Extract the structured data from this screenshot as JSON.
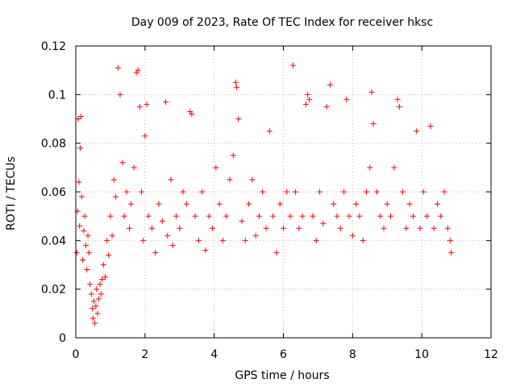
{
  "chart_data": {
    "type": "scatter",
    "title": "Day 009 of 2023, Rate Of TEC Index for receiver hksc",
    "xlabel": "GPS time / hours",
    "ylabel": "ROTI / TECUs",
    "xlim": [
      0,
      12
    ],
    "ylim": [
      0,
      0.12
    ],
    "x_ticks": [
      0,
      2,
      4,
      6,
      8,
      10,
      12
    ],
    "x_tick_labels": [
      "0",
      "2",
      "4",
      "6",
      "8",
      "10",
      "12"
    ],
    "y_ticks": [
      0,
      0.02,
      0.04,
      0.06,
      0.08,
      0.1,
      0.12
    ],
    "y_tick_labels": [
      "0",
      "0.02",
      "0.04",
      "0.06",
      "0.08",
      "0.1",
      "0.12"
    ],
    "grid": true,
    "marker": "+",
    "color": "#ff0000",
    "x_range_observed": [
      0,
      10.85
    ],
    "series": [
      {
        "points": [
          [
            0.03,
            0.035
          ],
          [
            0.05,
            0.052
          ],
          [
            0.07,
            0.09
          ],
          [
            0.09,
            0.064
          ],
          [
            0.11,
            0.046
          ],
          [
            0.13,
            0.078
          ],
          [
            0.15,
            0.091
          ],
          [
            0.17,
            0.058
          ],
          [
            0.2,
            0.032
          ],
          [
            0.23,
            0.044
          ],
          [
            0.26,
            0.05
          ],
          [
            0.29,
            0.038
          ],
          [
            0.32,
            0.028
          ],
          [
            0.35,
            0.042
          ],
          [
            0.38,
            0.035
          ],
          [
            0.41,
            0.022
          ],
          [
            0.45,
            0.018
          ],
          [
            0.48,
            0.012
          ],
          [
            0.5,
            0.008
          ],
          [
            0.52,
            0.015
          ],
          [
            0.55,
            0.006
          ],
          [
            0.58,
            0.013
          ],
          [
            0.6,
            0.02
          ],
          [
            0.63,
            0.01
          ],
          [
            0.66,
            0.016
          ],
          [
            0.7,
            0.022
          ],
          [
            0.73,
            0.018
          ],
          [
            0.76,
            0.024
          ],
          [
            0.8,
            0.03
          ],
          [
            0.85,
            0.025
          ],
          [
            0.9,
            0.04
          ],
          [
            0.95,
            0.034
          ],
          [
            1.0,
            0.05
          ],
          [
            1.05,
            0.042
          ],
          [
            1.1,
            0.065
          ],
          [
            1.15,
            0.058
          ],
          [
            1.22,
            0.111
          ],
          [
            1.28,
            0.1
          ],
          [
            1.35,
            0.072
          ],
          [
            1.4,
            0.05
          ],
          [
            1.47,
            0.06
          ],
          [
            1.55,
            0.045
          ],
          [
            1.6,
            0.055
          ],
          [
            1.68,
            0.07
          ],
          [
            1.75,
            0.109
          ],
          [
            1.8,
            0.11
          ],
          [
            1.85,
            0.095
          ],
          [
            1.9,
            0.06
          ],
          [
            1.95,
            0.04
          ],
          [
            2.0,
            0.083
          ],
          [
            2.05,
            0.096
          ],
          [
            2.1,
            0.05
          ],
          [
            2.2,
            0.045
          ],
          [
            2.3,
            0.035
          ],
          [
            2.4,
            0.055
          ],
          [
            2.5,
            0.048
          ],
          [
            2.6,
            0.097
          ],
          [
            2.65,
            0.042
          ],
          [
            2.75,
            0.065
          ],
          [
            2.8,
            0.038
          ],
          [
            2.9,
            0.05
          ],
          [
            3.0,
            0.045
          ],
          [
            3.1,
            0.06
          ],
          [
            3.2,
            0.055
          ],
          [
            3.3,
            0.093
          ],
          [
            3.35,
            0.092
          ],
          [
            3.45,
            0.05
          ],
          [
            3.55,
            0.04
          ],
          [
            3.65,
            0.06
          ],
          [
            3.75,
            0.036
          ],
          [
            3.85,
            0.05
          ],
          [
            3.95,
            0.045
          ],
          [
            4.05,
            0.07
          ],
          [
            4.15,
            0.055
          ],
          [
            4.25,
            0.04
          ],
          [
            4.35,
            0.05
          ],
          [
            4.45,
            0.065
          ],
          [
            4.55,
            0.075
          ],
          [
            4.62,
            0.105
          ],
          [
            4.65,
            0.103
          ],
          [
            4.7,
            0.09
          ],
          [
            4.8,
            0.048
          ],
          [
            4.9,
            0.04
          ],
          [
            5.0,
            0.055
          ],
          [
            5.1,
            0.065
          ],
          [
            5.2,
            0.042
          ],
          [
            5.3,
            0.05
          ],
          [
            5.4,
            0.06
          ],
          [
            5.5,
            0.045
          ],
          [
            5.6,
            0.085
          ],
          [
            5.7,
            0.05
          ],
          [
            5.8,
            0.035
          ],
          [
            5.9,
            0.055
          ],
          [
            6.0,
            0.045
          ],
          [
            6.1,
            0.06
          ],
          [
            6.2,
            0.05
          ],
          [
            6.28,
            0.112
          ],
          [
            6.35,
            0.06
          ],
          [
            6.45,
            0.045
          ],
          [
            6.55,
            0.05
          ],
          [
            6.65,
            0.096
          ],
          [
            6.7,
            0.1
          ],
          [
            6.75,
            0.098
          ],
          [
            6.85,
            0.05
          ],
          [
            6.95,
            0.04
          ],
          [
            7.05,
            0.06
          ],
          [
            7.15,
            0.047
          ],
          [
            7.25,
            0.095
          ],
          [
            7.35,
            0.104
          ],
          [
            7.45,
            0.055
          ],
          [
            7.55,
            0.05
          ],
          [
            7.65,
            0.045
          ],
          [
            7.75,
            0.06
          ],
          [
            7.82,
            0.098
          ],
          [
            7.9,
            0.05
          ],
          [
            8.0,
            0.042
          ],
          [
            8.1,
            0.055
          ],
          [
            8.2,
            0.05
          ],
          [
            8.3,
            0.04
          ],
          [
            8.4,
            0.06
          ],
          [
            8.5,
            0.07
          ],
          [
            8.55,
            0.101
          ],
          [
            8.6,
            0.088
          ],
          [
            8.7,
            0.06
          ],
          [
            8.8,
            0.05
          ],
          [
            8.9,
            0.045
          ],
          [
            9.0,
            0.055
          ],
          [
            9.1,
            0.05
          ],
          [
            9.2,
            0.07
          ],
          [
            9.3,
            0.098
          ],
          [
            9.35,
            0.095
          ],
          [
            9.45,
            0.06
          ],
          [
            9.55,
            0.045
          ],
          [
            9.65,
            0.055
          ],
          [
            9.75,
            0.05
          ],
          [
            9.85,
            0.085
          ],
          [
            9.95,
            0.045
          ],
          [
            10.05,
            0.06
          ],
          [
            10.15,
            0.05
          ],
          [
            10.25,
            0.087
          ],
          [
            10.35,
            0.045
          ],
          [
            10.45,
            0.055
          ],
          [
            10.55,
            0.05
          ],
          [
            10.65,
            0.06
          ],
          [
            10.75,
            0.045
          ],
          [
            10.82,
            0.04
          ],
          [
            10.85,
            0.035
          ]
        ]
      }
    ]
  }
}
